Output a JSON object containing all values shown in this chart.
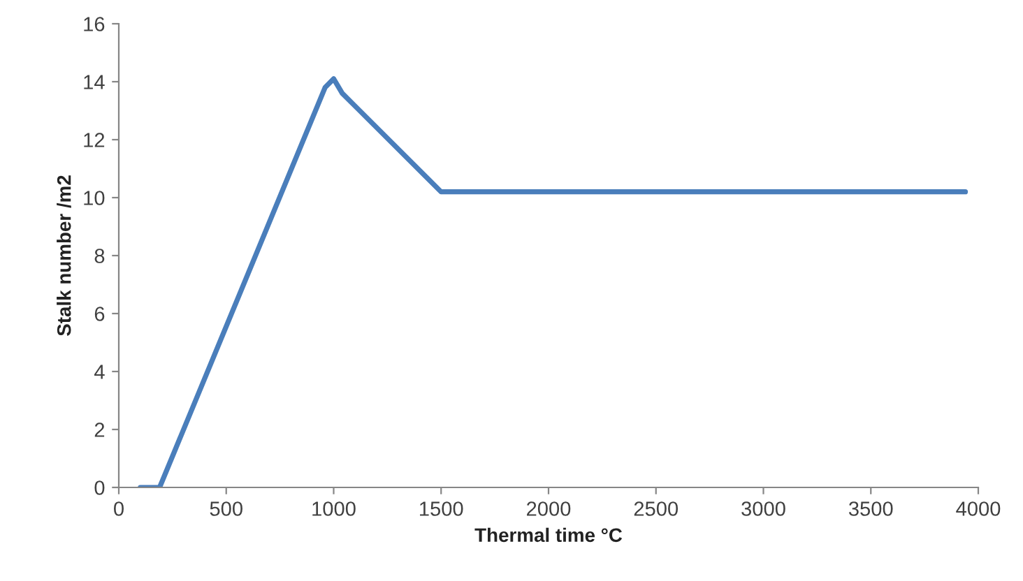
{
  "chart_data": {
    "type": "line",
    "xlabel": "Thermal time °C",
    "ylabel": "Stalk number /m2",
    "x": [
      100,
      190,
      960,
      1000,
      1040,
      1500,
      3940
    ],
    "series": [
      {
        "color": "#4a7ebb",
        "values": [
          0,
          0,
          13.8,
          14.1,
          13.6,
          10.2,
          10.2
        ]
      }
    ],
    "xlim": [
      0,
      4000
    ],
    "xticks": [
      0,
      500,
      1000,
      1500,
      2000,
      2500,
      3000,
      3500,
      4000
    ],
    "ylim": [
      0,
      16
    ],
    "yticks": [
      0,
      2,
      4,
      6,
      8,
      10,
      12,
      14,
      16
    ],
    "grid": false,
    "legend": false,
    "marker": "none",
    "line_style": "solid"
  }
}
